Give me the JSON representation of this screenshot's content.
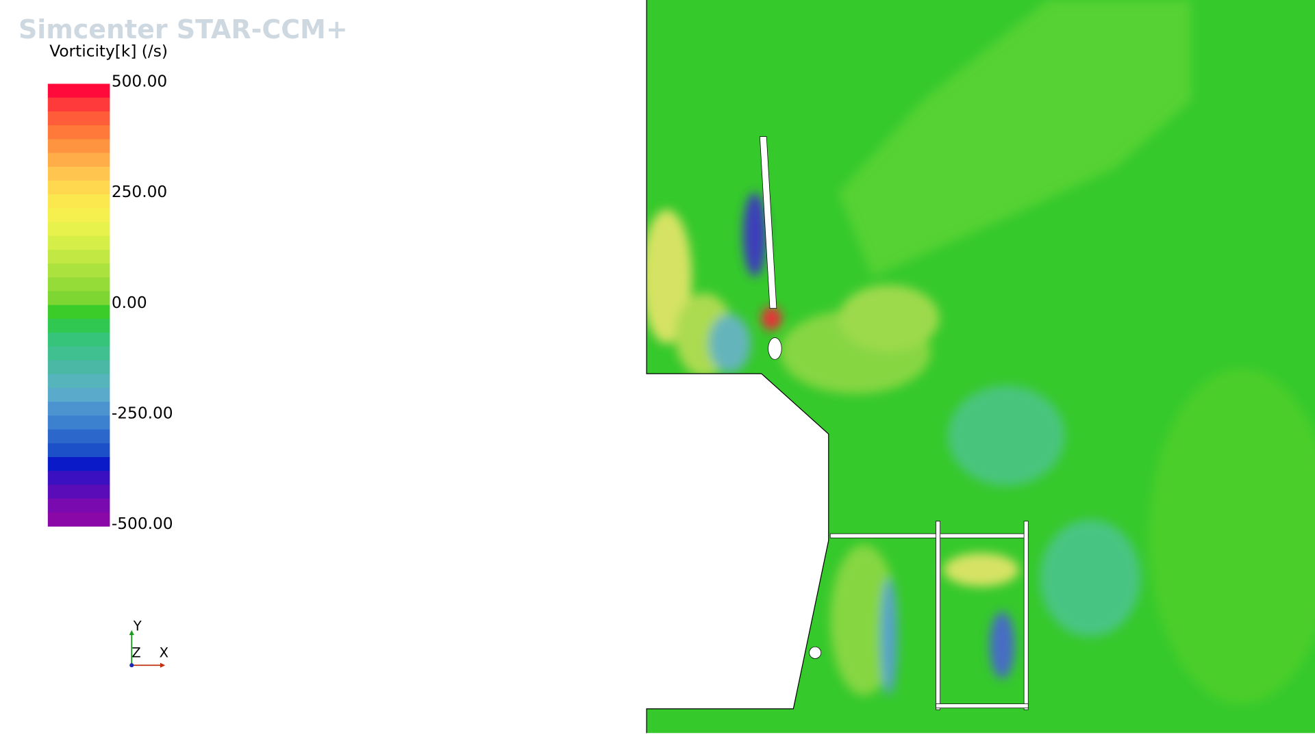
{
  "header": {
    "brand": "Simcenter STAR-CCM+"
  },
  "legend": {
    "title": "Vorticity[k] (/s)",
    "labels": [
      "500.00",
      "250.00",
      "0.00",
      "-250.00",
      "-500.00"
    ]
  },
  "triad": {
    "y": "Y",
    "z": "Z",
    "x": "X"
  }
}
